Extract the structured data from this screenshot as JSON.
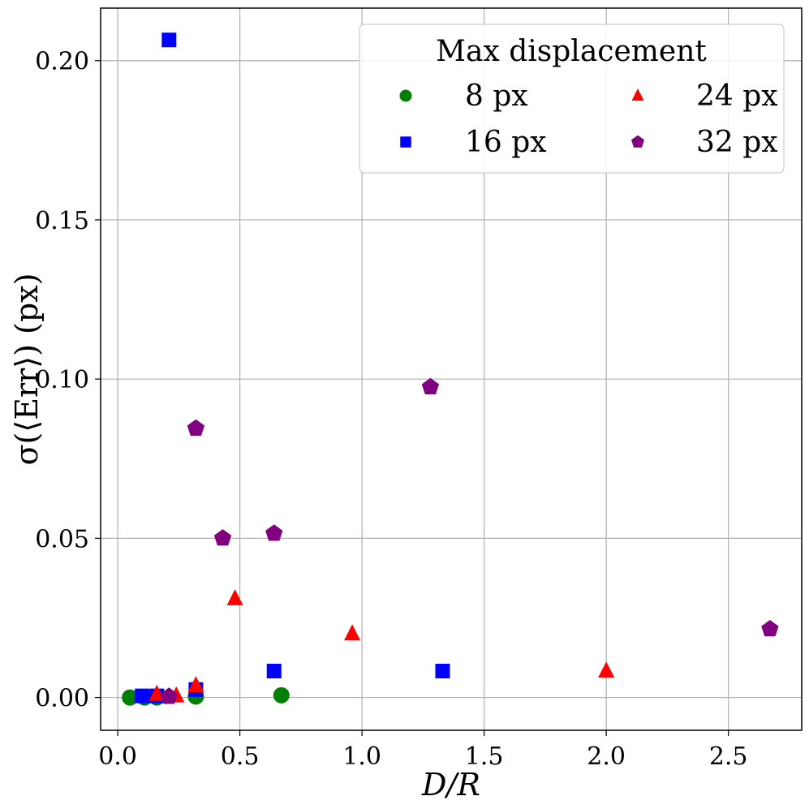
{
  "chart_data": {
    "type": "scatter",
    "title": "",
    "xlabel": "D/R",
    "ylabel": "σ(⟨Err⟩) (px)",
    "xlim": [
      -0.07,
      2.8
    ],
    "ylim": [
      -0.0103,
      0.2165
    ],
    "x_ticks": [
      0.0,
      0.5,
      1.0,
      1.5,
      2.0,
      2.5
    ],
    "x_tick_labels": [
      "0.0",
      "0.5",
      "1.0",
      "1.5",
      "2.0",
      "2.5"
    ],
    "y_ticks": [
      0.0,
      0.05,
      0.1,
      0.15,
      0.2
    ],
    "y_tick_labels": [
      "0.00",
      "0.05",
      "0.10",
      "0.15",
      "0.20"
    ],
    "grid": true,
    "legend": {
      "title": "Max displacement",
      "placement": "top-right",
      "columns": 2
    },
    "series": [
      {
        "name": "8 px",
        "marker": "circle",
        "color": "#008000",
        "x": [
          0.05,
          0.11,
          0.16,
          0.32,
          0.67
        ],
        "y": [
          0.0,
          0.0,
          0.0,
          0.0003,
          0.0007
        ]
      },
      {
        "name": "16 px",
        "marker": "square",
        "color": "#0000ff",
        "x": [
          0.21,
          0.1,
          0.16,
          0.32,
          0.64,
          1.33
        ],
        "y": [
          0.2065,
          0.0005,
          0.0005,
          0.0025,
          0.0083,
          0.0083
        ]
      },
      {
        "name": "24 px",
        "marker": "triangle",
        "color": "#ff0000",
        "x": [
          0.16,
          0.24,
          0.32,
          0.48,
          0.96,
          2.0
        ],
        "y": [
          0.001,
          0.0005,
          0.0037,
          0.031,
          0.02,
          0.0083
        ]
      },
      {
        "name": "32 px",
        "marker": "pentagon",
        "color": "#800080",
        "x": [
          0.21,
          0.32,
          0.43,
          0.64,
          1.28,
          2.67
        ],
        "y": [
          0.0003,
          0.0845,
          0.05,
          0.0515,
          0.0975,
          0.0215
        ]
      }
    ]
  }
}
